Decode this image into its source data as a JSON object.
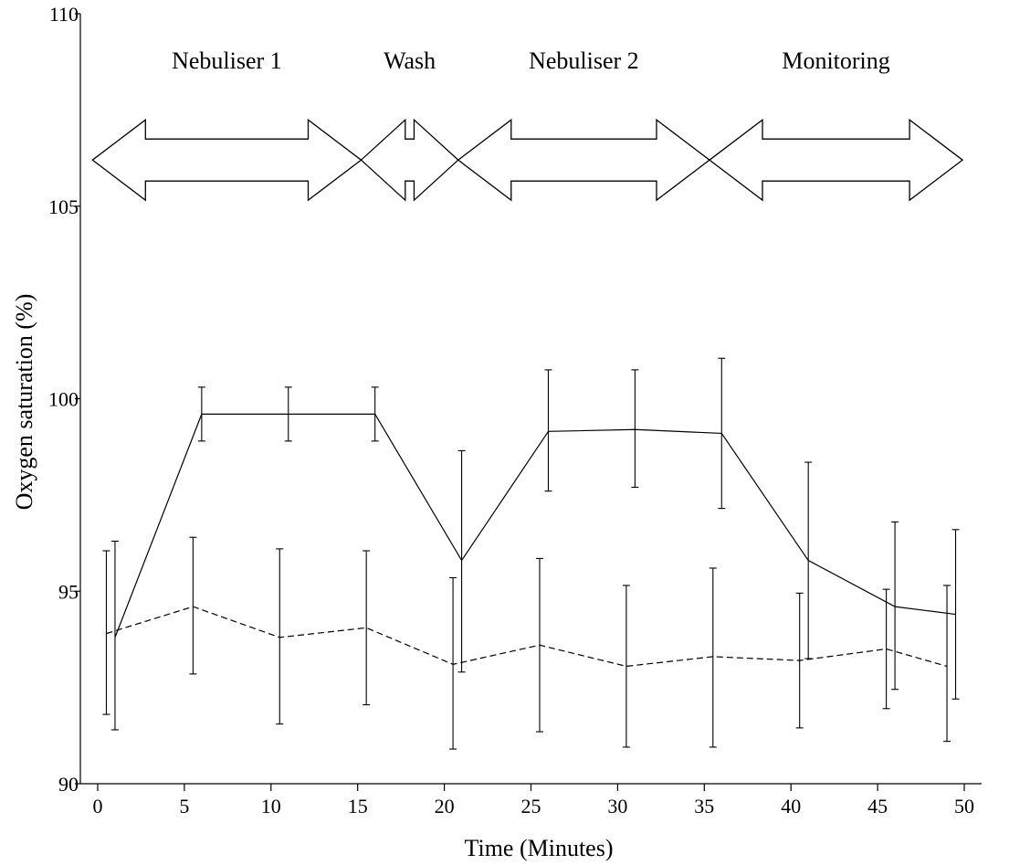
{
  "chart_data": {
    "type": "line",
    "xlabel": "Time (Minutes)",
    "ylabel": "Oxygen saturation (%)",
    "xlim": [
      -1,
      51
    ],
    "ylim": [
      90,
      110
    ],
    "xticks": [
      0,
      5,
      10,
      15,
      20,
      25,
      30,
      35,
      40,
      45,
      50
    ],
    "yticks": [
      90,
      95,
      100,
      105,
      110
    ],
    "grid": false,
    "series": [
      {
        "style": "solid",
        "x": [
          1,
          6,
          11,
          16,
          21,
          26,
          31,
          36,
          41,
          46,
          49.5
        ],
        "y": [
          93.8,
          99.6,
          99.6,
          99.6,
          95.8,
          99.15,
          99.2,
          99.1,
          95.8,
          94.6,
          94.4
        ],
        "err_low": [
          91.4,
          98.9,
          98.9,
          98.9,
          92.9,
          97.6,
          97.7,
          97.15,
          93.25,
          92.45,
          92.2
        ],
        "err_high": [
          96.3,
          100.3,
          100.3,
          100.3,
          98.65,
          100.75,
          100.75,
          101.05,
          98.35,
          96.8,
          96.6
        ]
      },
      {
        "style": "dashed",
        "x": [
          0.5,
          5.5,
          10.5,
          15.5,
          20.5,
          25.5,
          30.5,
          35.5,
          40.5,
          45.5,
          49
        ],
        "y": [
          93.9,
          94.6,
          93.8,
          94.05,
          93.1,
          93.6,
          93.05,
          93.3,
          93.2,
          93.5,
          93.05
        ],
        "err_low": [
          91.8,
          92.85,
          91.55,
          92.05,
          90.9,
          91.35,
          90.95,
          90.95,
          91.45,
          91.95,
          91.1
        ],
        "err_high": [
          96.05,
          96.4,
          96.1,
          96.05,
          95.35,
          95.85,
          95.15,
          95.6,
          94.95,
          95.05,
          95.15
        ]
      }
    ],
    "annotations": [
      {
        "text": "Nebuliser 1",
        "x_start": -0.3,
        "x_end": 15.2
      },
      {
        "text": "Wash",
        "x_start": 15.2,
        "x_end": 20.8
      },
      {
        "text": "Nebuliser 2",
        "x_start": 20.8,
        "x_end": 35.3
      },
      {
        "text": "Monitoring",
        "x_start": 35.3,
        "x_end": 49.9
      }
    ],
    "annotation_y": 106.2
  }
}
